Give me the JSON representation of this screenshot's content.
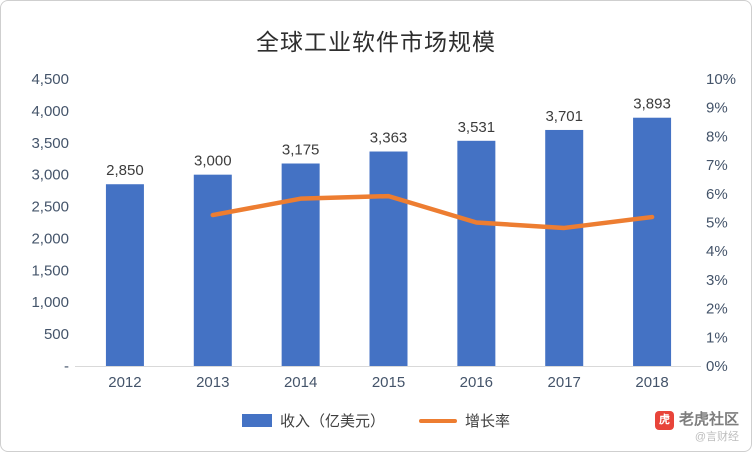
{
  "chart_data": {
    "type": "bar",
    "title": "全球工业软件市场规模",
    "categories": [
      "2012",
      "2013",
      "2014",
      "2015",
      "2016",
      "2017",
      "2018"
    ],
    "series": [
      {
        "name": "收入（亿美元）",
        "type": "bar",
        "color": "#4472C4",
        "values": [
          2850,
          3000,
          3175,
          3363,
          3531,
          3701,
          3893
        ],
        "labels": [
          "2,850",
          "3,000",
          "3,175",
          "3,363",
          "3,531",
          "3,701",
          "3,893"
        ]
      },
      {
        "name": "增长率",
        "type": "line",
        "color": "#ED7D31",
        "values": [
          null,
          5.26,
          5.83,
          5.92,
          5.0,
          4.81,
          5.19
        ]
      }
    ],
    "left_axis": {
      "min": 0,
      "max": 4500,
      "step": 500,
      "tick_labels": [
        "-",
        "500",
        "1,000",
        "1,500",
        "2,000",
        "2,500",
        "3,000",
        "3,500",
        "4,000",
        "4,500"
      ]
    },
    "right_axis": {
      "min": 0,
      "max": 10,
      "step": 1,
      "tick_labels": [
        "0%",
        "1%",
        "2%",
        "3%",
        "4%",
        "5%",
        "6%",
        "7%",
        "8%",
        "9%",
        "10%"
      ]
    },
    "grid": false,
    "legend_position": "bottom"
  },
  "watermark": {
    "logo_glyph": "虎",
    "brand": "老虎社区",
    "handle": "@言财经"
  }
}
